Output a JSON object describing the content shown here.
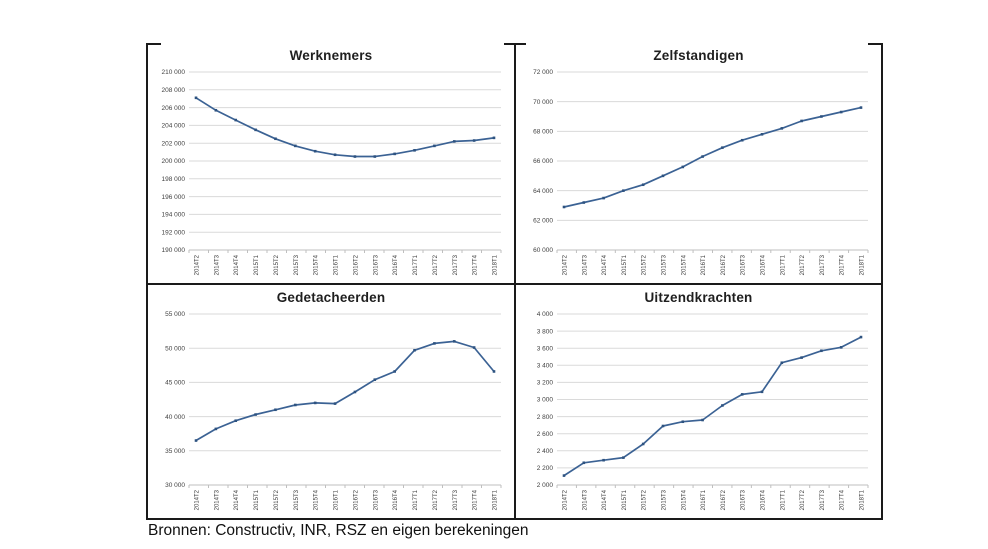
{
  "caption": "Bronnen: Constructiv, INR, RSZ en eigen berekeningen",
  "style": {
    "line_color": "#3b6294",
    "marker_color": "#2e5380",
    "grid_color": "#dadada",
    "axis_color": "#bfbfbf",
    "frame_color": "#1a1a1a"
  },
  "chart_data": [
    {
      "type": "line",
      "title": "Werknemers",
      "categories": [
        "2014T2",
        "2014T3",
        "2014T4",
        "2015T1",
        "2015T2",
        "2015T3",
        "2015T4",
        "2016T1",
        "2016T2",
        "2016T3",
        "2016T4",
        "2017T1",
        "2017T2",
        "2017T3",
        "2017T4",
        "2018T1"
      ],
      "values": [
        207100,
        205700,
        204600,
        203500,
        202500,
        201700,
        201100,
        200700,
        200500,
        200500,
        200800,
        201200,
        201700,
        202200,
        202300,
        202600
      ],
      "xlabel": "",
      "ylabel": "",
      "ylim": [
        190000,
        210000
      ],
      "ystep": 2000,
      "grid": true,
      "legend": "none"
    },
    {
      "type": "line",
      "title": "Zelfstandigen",
      "categories": [
        "2014T2",
        "2014T3",
        "2014T4",
        "2015T1",
        "2015T2",
        "2015T3",
        "2015T4",
        "2016T1",
        "2016T2",
        "2016T3",
        "2016T4",
        "2017T1",
        "2017T2",
        "2017T3",
        "2017T4",
        "2018T1"
      ],
      "values": [
        62900,
        63200,
        63500,
        64000,
        64400,
        65000,
        65600,
        66300,
        66900,
        67400,
        67800,
        68200,
        68700,
        69000,
        69300,
        69600
      ],
      "xlabel": "",
      "ylabel": "",
      "ylim": [
        60000,
        72000
      ],
      "ystep": 2000,
      "grid": true,
      "legend": "none"
    },
    {
      "type": "line",
      "title": "Gedetacheerden",
      "categories": [
        "2014T2",
        "2014T3",
        "2014T4",
        "2015T1",
        "2015T2",
        "2015T3",
        "2015T4",
        "2016T1",
        "2016T2",
        "2016T3",
        "2016T4",
        "2017T1",
        "2017T2",
        "2017T3",
        "2017T4",
        "2018T1"
      ],
      "values": [
        36500,
        38200,
        39400,
        40300,
        41000,
        41700,
        42000,
        41900,
        43600,
        45400,
        46600,
        49700,
        50700,
        51000,
        50100,
        46600
      ],
      "xlabel": "",
      "ylabel": "",
      "ylim": [
        30000,
        55000
      ],
      "ystep": 5000,
      "grid": true,
      "legend": "none"
    },
    {
      "type": "line",
      "title": "Uitzendkrachten",
      "categories": [
        "2014T2",
        "2014T3",
        "2014T4",
        "2015T1",
        "2015T2",
        "2015T3",
        "2015T4",
        "2016T1",
        "2016T2",
        "2016T3",
        "2016T4",
        "2017T1",
        "2017T2",
        "2017T3",
        "2017T4",
        "2018T1"
      ],
      "values": [
        2110,
        2260,
        2290,
        2320,
        2480,
        2690,
        2740,
        2760,
        2930,
        3060,
        3090,
        3430,
        3490,
        3570,
        3610,
        3730
      ],
      "xlabel": "",
      "ylabel": "",
      "ylim": [
        2000,
        4000
      ],
      "ystep": 200,
      "grid": true,
      "legend": "none"
    }
  ]
}
